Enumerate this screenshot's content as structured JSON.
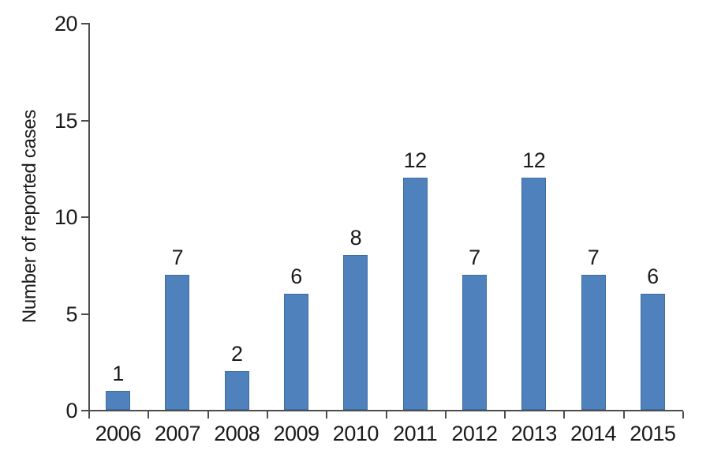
{
  "chart_data": {
    "type": "bar",
    "categories": [
      "2006",
      "2007",
      "2008",
      "2009",
      "2010",
      "2011",
      "2012",
      "2013",
      "2014",
      "2015"
    ],
    "values": [
      1,
      7,
      2,
      6,
      8,
      12,
      7,
      12,
      7,
      6
    ],
    "title": "",
    "xlabel": "",
    "ylabel": "Number of reported cases",
    "ylim": [
      0,
      20
    ],
    "yticks": [
      0,
      5,
      10,
      15,
      20
    ],
    "bar_color": "#4F81BD",
    "bar_border_color": "#3d6da3",
    "axis_color": "#4d4d4d",
    "text_color": "#1a1a1a",
    "grid": "off",
    "legend": "none",
    "data_labels": true
  }
}
